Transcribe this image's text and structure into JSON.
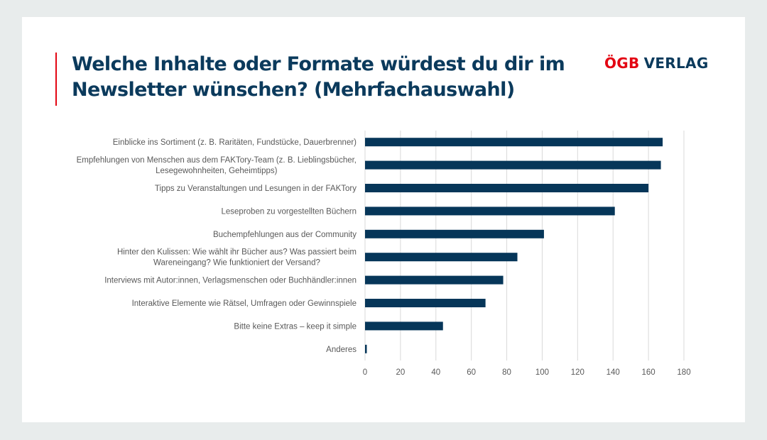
{
  "header": {
    "title_line1": "Welche Inhalte oder Formate würdest du dir im",
    "title_line2": "Newsletter wünschen? (Mehrfachauswahl)",
    "logo_part1": "ÖGB",
    "logo_part2": "VERLAG"
  },
  "colors": {
    "bar": "#063659",
    "accent": "#e30613",
    "title": "#0b3a5c",
    "grid": "#d9d9d9",
    "label": "#595959"
  },
  "chart_data": {
    "type": "bar",
    "orientation": "horizontal",
    "title": "Welche Inhalte oder Formate würdest du dir im Newsletter wünschen? (Mehrfachauswahl)",
    "xlabel": "",
    "ylabel": "",
    "xlim": [
      0,
      180
    ],
    "grid": true,
    "legend": "none",
    "ticks": [
      "0",
      "20",
      "40",
      "60",
      "80",
      "100",
      "120",
      "140",
      "160",
      "180"
    ],
    "tick_values": [
      0,
      20,
      40,
      60,
      80,
      100,
      120,
      140,
      160,
      180
    ],
    "categories": [
      [
        "Einblicke ins Sortiment (z. B. Raritäten, Fundstücke, Dauerbrenner)"
      ],
      [
        "Empfehlungen von Menschen aus dem FAKTory-Team (z. B. Lieblingsbücher,",
        "Lesegewohnheiten, Geheimtipps)"
      ],
      [
        "Tipps zu Veranstaltungen und Lesungen in der FAKTory"
      ],
      [
        "Leseproben zu vorgestellten Büchern"
      ],
      [
        "Buchempfehlungen aus der Community"
      ],
      [
        "Hinter den Kulissen: Wie wählt ihr Bücher aus? Was passiert beim",
        "Wareneingang? Wie funktioniert der Versand?"
      ],
      [
        "Interviews mit Autor:innen, Verlagsmenschen oder Buchhändler:innen"
      ],
      [
        "Interaktive Elemente wie Rätsel, Umfragen oder Gewinnspiele"
      ],
      [
        "Bitte keine Extras – keep it simple"
      ],
      [
        "Anderes"
      ]
    ],
    "values": [
      168,
      167,
      160,
      141,
      101,
      86,
      78,
      68,
      44,
      1
    ]
  }
}
